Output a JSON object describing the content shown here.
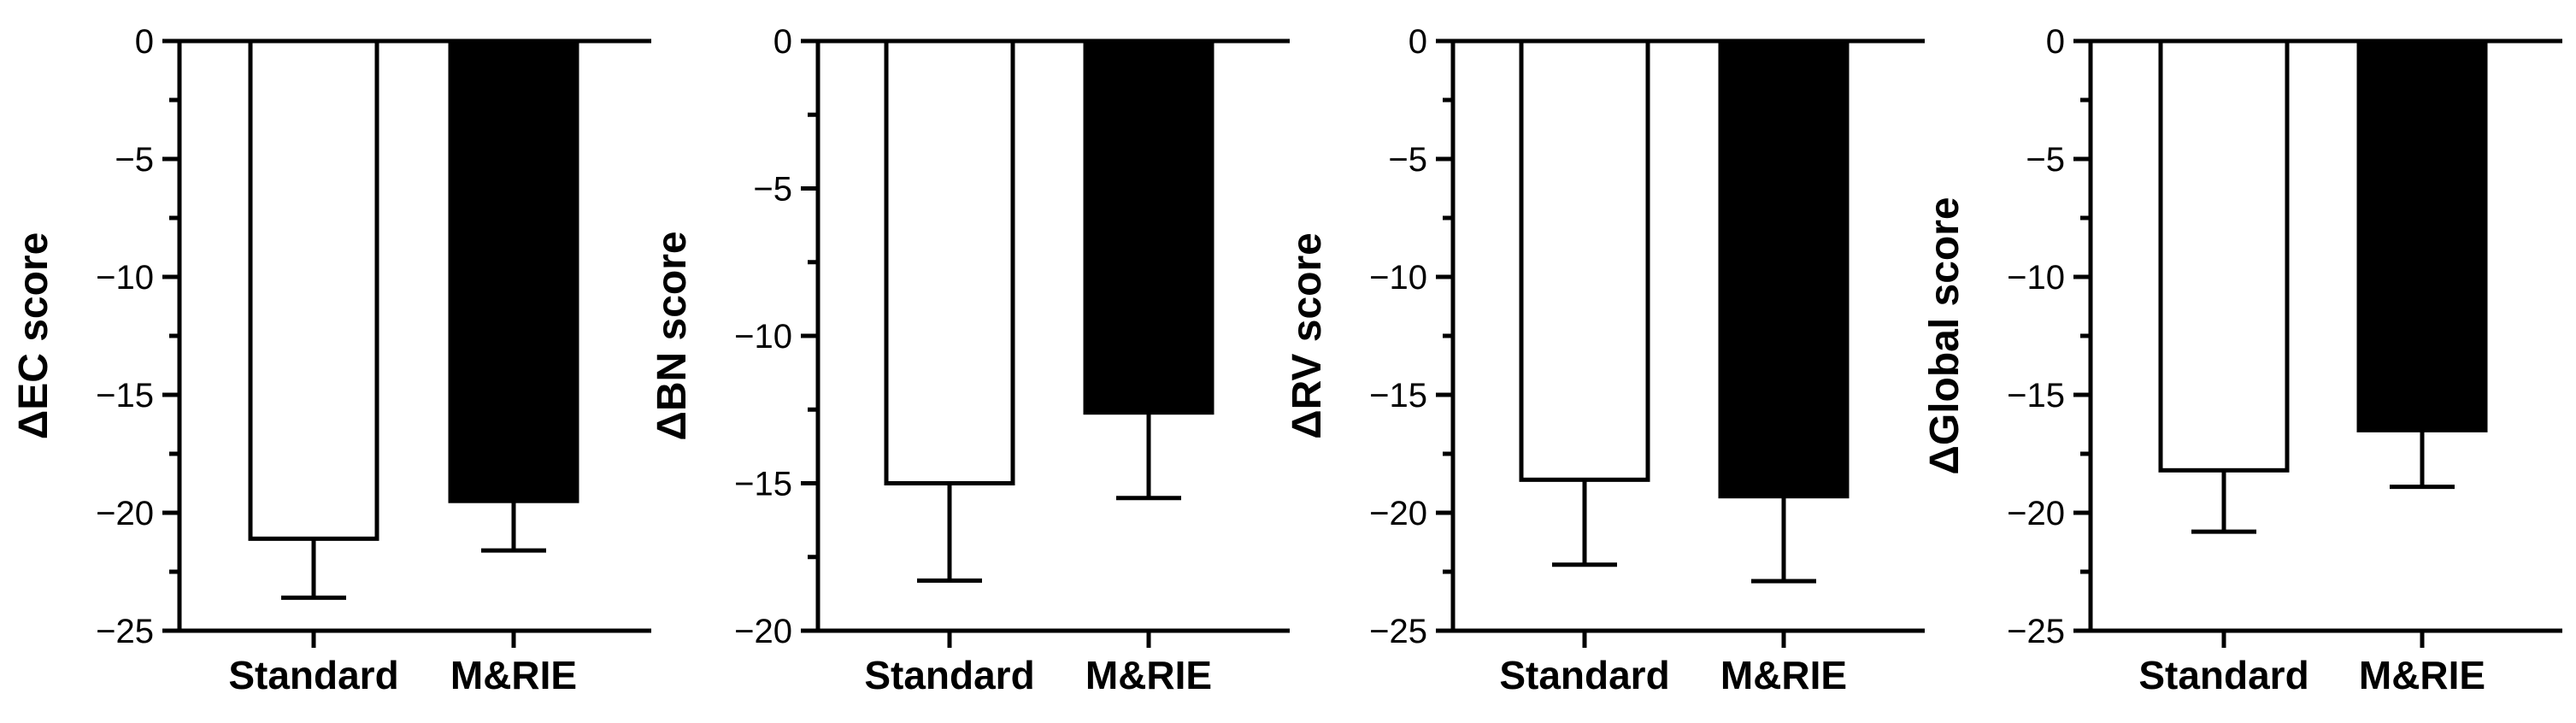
{
  "chart_data": [
    {
      "type": "bar",
      "ylabel": "ΔEC score",
      "categories": [
        "Standard",
        "M&RIE"
      ],
      "values": [
        -21.1,
        -19.5
      ],
      "error": [
        2.5,
        2.1
      ],
      "ylim": [
        -25,
        0
      ],
      "yticks": [
        0,
        -5,
        -10,
        -15,
        -20,
        -25
      ],
      "yticks_labels": [
        "0",
        "−5",
        "−10",
        "−15",
        "−20",
        "−25"
      ],
      "minor_tick_step": 2.5,
      "bar_colors": [
        "#ffffff",
        "#000000"
      ],
      "grid": false
    },
    {
      "type": "bar",
      "ylabel": "ΔBN score",
      "categories": [
        "Standard",
        "M&RIE"
      ],
      "values": [
        -15.0,
        -12.6
      ],
      "error": [
        3.3,
        2.9
      ],
      "ylim": [
        -20,
        0
      ],
      "yticks": [
        0,
        -5,
        -10,
        -15,
        -20
      ],
      "yticks_labels": [
        "0",
        "−5",
        "−10",
        "−15",
        "−20"
      ],
      "minor_tick_step": 2.5,
      "bar_colors": [
        "#ffffff",
        "#000000"
      ],
      "grid": false
    },
    {
      "type": "bar",
      "ylabel": "ΔRV score",
      "categories": [
        "Standard",
        "M&RIE"
      ],
      "values": [
        -18.6,
        -19.3
      ],
      "error": [
        3.6,
        3.6
      ],
      "ylim": [
        -25,
        0
      ],
      "yticks": [
        0,
        -5,
        -10,
        -15,
        -20,
        -25
      ],
      "yticks_labels": [
        "0",
        "−5",
        "−10",
        "−15",
        "−20",
        "−25"
      ],
      "minor_tick_step": 2.5,
      "bar_colors": [
        "#ffffff",
        "#000000"
      ],
      "grid": false
    },
    {
      "type": "bar",
      "ylabel": "ΔGlobal score",
      "categories": [
        "Standard",
        "M&RIE"
      ],
      "values": [
        -18.2,
        -16.5
      ],
      "error": [
        2.6,
        2.4
      ],
      "ylim": [
        -25,
        0
      ],
      "yticks": [
        0,
        -5,
        -10,
        -15,
        -20,
        -25
      ],
      "yticks_labels": [
        "0",
        "−5",
        "−10",
        "−15",
        "−20",
        "−25"
      ],
      "minor_tick_step": 2.5,
      "bar_colors": [
        "#ffffff",
        "#000000"
      ],
      "grid": false
    }
  ]
}
